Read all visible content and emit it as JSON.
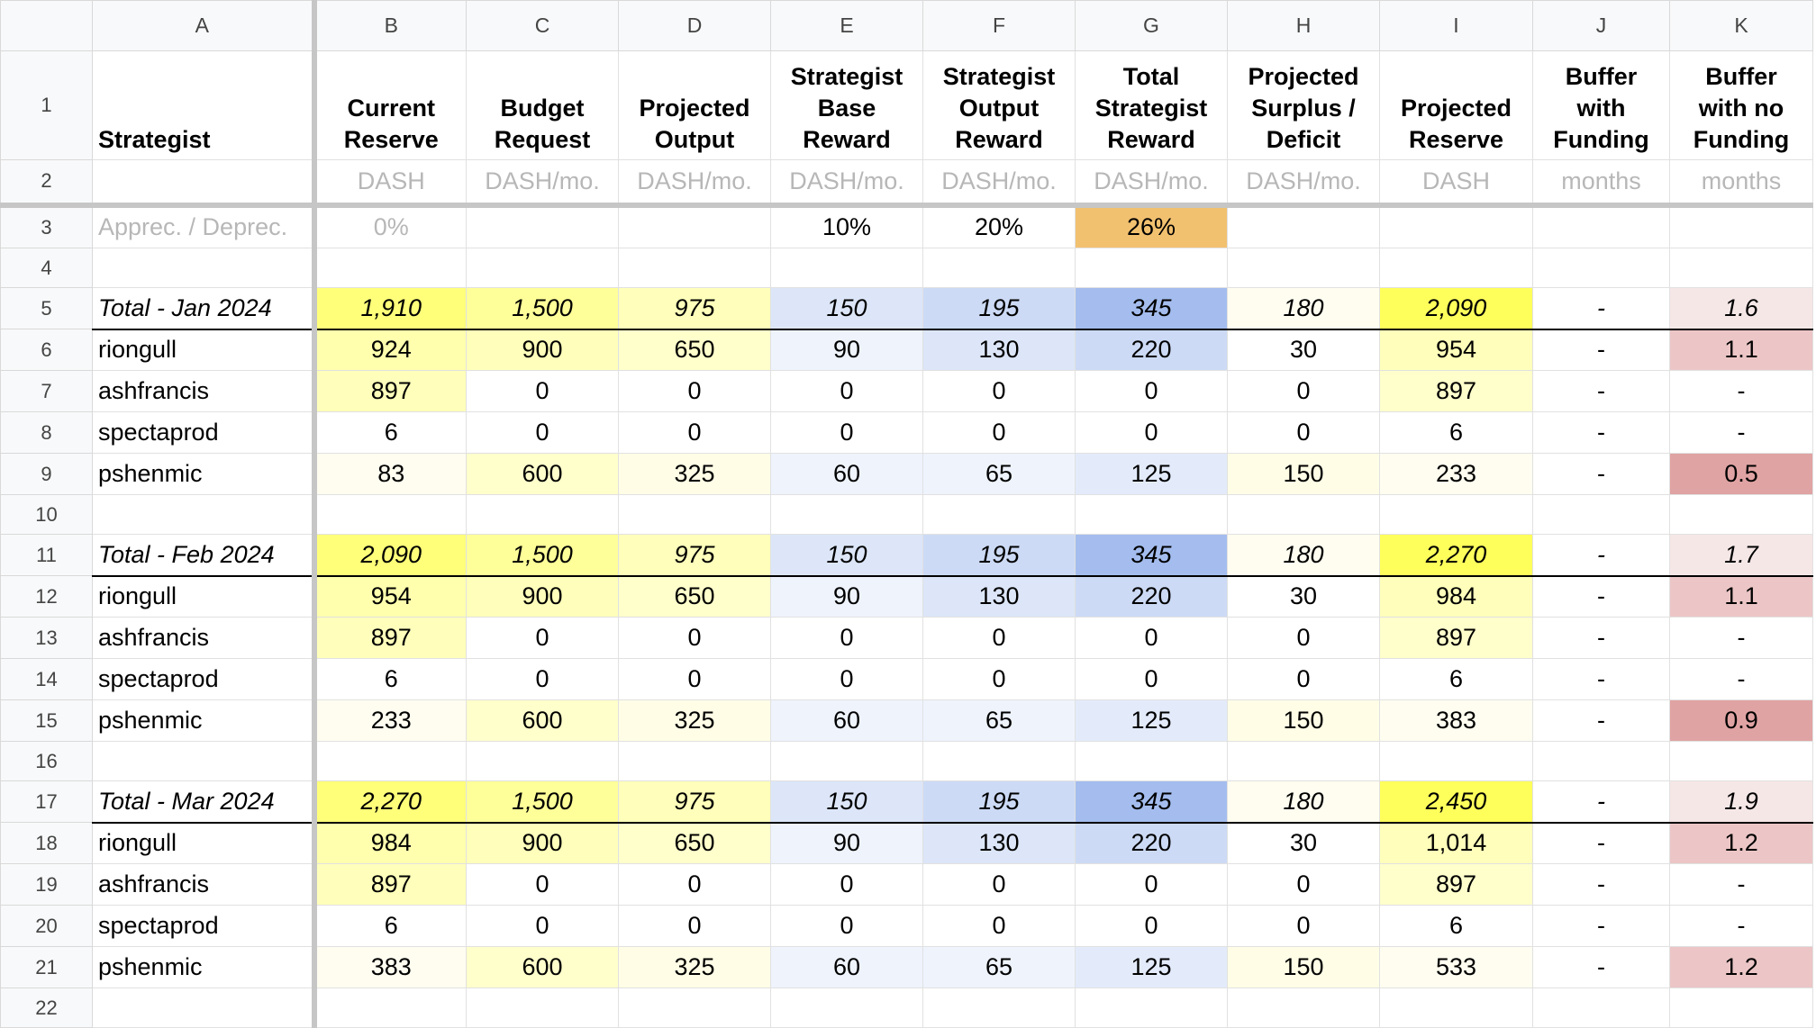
{
  "sheet": {
    "corner": "",
    "column_letters": [
      "A",
      "B",
      "C",
      "D",
      "E",
      "F",
      "G",
      "H",
      "I",
      "J",
      "K"
    ],
    "headers": {
      "a": "Strategist",
      "b": [
        "Current",
        "Reserve"
      ],
      "c": [
        "Budget",
        "Request"
      ],
      "d": [
        "Projected",
        "Output"
      ],
      "e": [
        "Strategist",
        "Base",
        "Reward"
      ],
      "f": [
        "Strategist",
        "Output",
        "Reward"
      ],
      "g": [
        "Total",
        "Strategist",
        "Reward"
      ],
      "h": [
        "Projected",
        "Surplus /",
        "Deficit"
      ],
      "i": [
        "Projected",
        "Reserve"
      ],
      "j": [
        "Buffer",
        "with",
        "Funding"
      ],
      "k": [
        "Buffer",
        "with no",
        "Funding"
      ]
    },
    "units": [
      "",
      "DASH",
      "DASH/mo.",
      "DASH/mo.",
      "DASH/mo.",
      "DASH/mo.",
      "DASH/mo.",
      "DASH/mo.",
      "DASH",
      "months",
      "months"
    ],
    "row3": [
      "Apprec. / Deprec.",
      "0%",
      "",
      "",
      "10%",
      "20%",
      "26%",
      "",
      "",
      "",
      ""
    ],
    "rows": [
      {
        "n": "4",
        "t": "blank",
        "c": [
          "",
          "",
          "",
          "",
          "",
          "",
          "",
          "",
          "",
          "",
          ""
        ]
      },
      {
        "n": "5",
        "t": "total",
        "c": [
          "Total - Jan 2024",
          "1,910",
          "1,500",
          "975",
          "150",
          "195",
          "345",
          "180",
          "2,090",
          "-",
          "1.6"
        ]
      },
      {
        "n": "6",
        "t": "data",
        "c": [
          "riongull",
          "924",
          "900",
          "650",
          "90",
          "130",
          "220",
          "30",
          "954",
          "-",
          "1.1"
        ]
      },
      {
        "n": "7",
        "t": "data",
        "c": [
          "ashfrancis",
          "897",
          "0",
          "0",
          "0",
          "0",
          "0",
          "0",
          "897",
          "-",
          "-"
        ]
      },
      {
        "n": "8",
        "t": "data",
        "c": [
          "spectaprod",
          "6",
          "0",
          "0",
          "0",
          "0",
          "0",
          "0",
          "6",
          "-",
          "-"
        ]
      },
      {
        "n": "9",
        "t": "data",
        "c": [
          "pshenmic",
          "83",
          "600",
          "325",
          "60",
          "65",
          "125",
          "150",
          "233",
          "-",
          "0.5"
        ]
      },
      {
        "n": "10",
        "t": "blank",
        "c": [
          "",
          "",
          "",
          "",
          "",
          "",
          "",
          "",
          "",
          "",
          ""
        ]
      },
      {
        "n": "11",
        "t": "total",
        "c": [
          "Total - Feb 2024",
          "2,090",
          "1,500",
          "975",
          "150",
          "195",
          "345",
          "180",
          "2,270",
          "-",
          "1.7"
        ]
      },
      {
        "n": "12",
        "t": "data",
        "c": [
          "riongull",
          "954",
          "900",
          "650",
          "90",
          "130",
          "220",
          "30",
          "984",
          "-",
          "1.1"
        ]
      },
      {
        "n": "13",
        "t": "data",
        "c": [
          "ashfrancis",
          "897",
          "0",
          "0",
          "0",
          "0",
          "0",
          "0",
          "897",
          "-",
          "-"
        ]
      },
      {
        "n": "14",
        "t": "data",
        "c": [
          "spectaprod",
          "6",
          "0",
          "0",
          "0",
          "0",
          "0",
          "0",
          "6",
          "-",
          "-"
        ]
      },
      {
        "n": "15",
        "t": "data",
        "c": [
          "pshenmic",
          "233",
          "600",
          "325",
          "60",
          "65",
          "125",
          "150",
          "383",
          "-",
          "0.9"
        ]
      },
      {
        "n": "16",
        "t": "blank",
        "c": [
          "",
          "",
          "",
          "",
          "",
          "",
          "",
          "",
          "",
          "",
          ""
        ]
      },
      {
        "n": "17",
        "t": "total",
        "c": [
          "Total - Mar 2024",
          "2,270",
          "1,500",
          "975",
          "150",
          "195",
          "345",
          "180",
          "2,450",
          "-",
          "1.9"
        ]
      },
      {
        "n": "18",
        "t": "data",
        "c": [
          "riongull",
          "984",
          "900",
          "650",
          "90",
          "130",
          "220",
          "30",
          "1,014",
          "-",
          "1.2"
        ]
      },
      {
        "n": "19",
        "t": "data",
        "c": [
          "ashfrancis",
          "897",
          "0",
          "0",
          "0",
          "0",
          "0",
          "0",
          "897",
          "-",
          "-"
        ]
      },
      {
        "n": "20",
        "t": "data",
        "c": [
          "spectaprod",
          "6",
          "0",
          "0",
          "0",
          "0",
          "0",
          "0",
          "6",
          "-",
          "-"
        ]
      },
      {
        "n": "21",
        "t": "data",
        "c": [
          "pshenmic",
          "383",
          "600",
          "325",
          "60",
          "65",
          "125",
          "150",
          "533",
          "-",
          "1.2"
        ]
      },
      {
        "n": "22",
        "t": "blank",
        "c": [
          "",
          "",
          "",
          "",
          "",
          "",
          "",
          "",
          "",
          "",
          ""
        ]
      }
    ],
    "fills": {
      "5": [
        "",
        "#ffff7a",
        "#ffff99",
        "#ffffbb",
        "#dce6f8",
        "#ccdaf5",
        "#a4bdee",
        "#fffdf0",
        "#ffff5c",
        "",
        "#f6e7e7"
      ],
      "6": [
        "",
        "#ffffae",
        "#ffffbb",
        "#ffffcc",
        "#eef3fc",
        "#dce6f8",
        "#ccdaf5",
        "",
        "#ffffbb",
        "",
        "#ecc6c6"
      ],
      "7": [
        "",
        "#ffffbb",
        "",
        "",
        "",
        "",
        "",
        "",
        "#ffffcc",
        "",
        ""
      ],
      "8": [
        "",
        "",
        "",
        "",
        "",
        "",
        "",
        "",
        "",
        "",
        ""
      ],
      "9": [
        "",
        "#fffdf0",
        "#ffffcc",
        "#fffde6",
        "#eef3fc",
        "#eef3fc",
        "#e3ebfb",
        "#fffde6",
        "#fffdf0",
        "",
        "#e0a3a3"
      ],
      "11": [
        "",
        "#ffff7a",
        "#ffff99",
        "#ffffbb",
        "#dce6f8",
        "#ccdaf5",
        "#a4bdee",
        "#fffdf0",
        "#ffff5c",
        "",
        "#f6e7e7"
      ],
      "12": [
        "",
        "#ffffae",
        "#ffffbb",
        "#ffffcc",
        "#eef3fc",
        "#dce6f8",
        "#ccdaf5",
        "",
        "#ffffbb",
        "",
        "#ecc6c6"
      ],
      "13": [
        "",
        "#ffffbb",
        "",
        "",
        "",
        "",
        "",
        "",
        "#ffffcc",
        "",
        ""
      ],
      "14": [
        "",
        "",
        "",
        "",
        "",
        "",
        "",
        "",
        "",
        "",
        ""
      ],
      "15": [
        "",
        "#fffdf0",
        "#ffffcc",
        "#fffde6",
        "#eef3fc",
        "#eef3fc",
        "#e3ebfb",
        "#fffde6",
        "#fffdf0",
        "",
        "#e0a3a3"
      ],
      "17": [
        "",
        "#ffff7a",
        "#ffff99",
        "#ffffbb",
        "#dce6f8",
        "#ccdaf5",
        "#a4bdee",
        "#fffdf0",
        "#ffff5c",
        "",
        "#f6e7e7"
      ],
      "18": [
        "",
        "#ffffae",
        "#ffffbb",
        "#ffffcc",
        "#eef3fc",
        "#dce6f8",
        "#ccdaf5",
        "",
        "#ffffbb",
        "",
        "#ecc6c6"
      ],
      "19": [
        "",
        "#ffffbb",
        "",
        "",
        "",
        "",
        "",
        "",
        "#ffffcc",
        "",
        ""
      ],
      "20": [
        "",
        "",
        "",
        "",
        "",
        "",
        "",
        "",
        "",
        "",
        ""
      ],
      "21": [
        "",
        "#fffdf0",
        "#ffffcc",
        "#fffde6",
        "#eef3fc",
        "#eef3fc",
        "#e3ebfb",
        "#fffde6",
        "#fffdf0",
        "",
        "#ecc6c6"
      ]
    },
    "row3_fill": "#f2c170"
  }
}
